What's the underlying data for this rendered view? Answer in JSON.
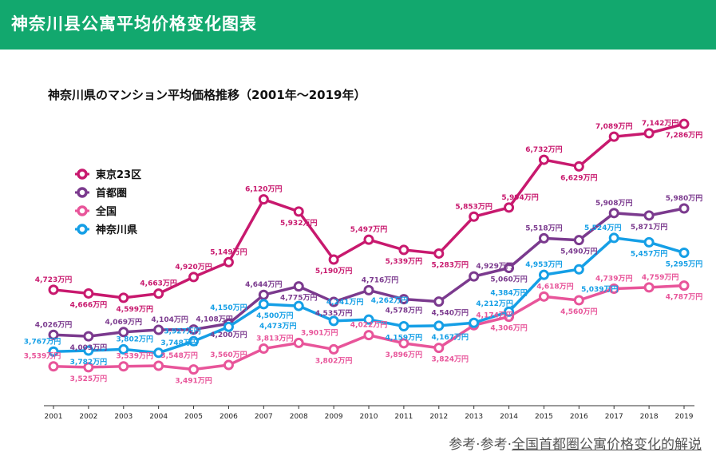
{
  "header": {
    "title": "神奈川县公寓平均价格变化图表"
  },
  "footer": {
    "prefix": "参考·参考·",
    "link": "全国首都圈公寓价格变化的解说"
  },
  "chart_data": {
    "type": "line",
    "title": "神奈川県のマンション平均価格推移（2001年〜2019年）",
    "unit_suffix": "万円",
    "x": [
      "2001",
      "2002",
      "2003",
      "2004",
      "2005",
      "2006",
      "2007",
      "2008",
      "2009",
      "2010",
      "2011",
      "2012",
      "2013",
      "2014",
      "2015",
      "2016",
      "2017",
      "2018",
      "2019"
    ],
    "legend_position": "left",
    "grid": false,
    "series": [
      {
        "name": "東京23区",
        "color": "#c8196e",
        "values": [
          4723,
          4666,
          4599,
          4663,
          4920,
          5149,
          6120,
          5932,
          5190,
          5497,
          5339,
          5283,
          5853,
          5994,
          6732,
          6629,
          7089,
          7142,
          7286
        ]
      },
      {
        "name": "首都圏",
        "color": "#7b3a8e",
        "values": [
          4026,
          4003,
          4069,
          4104,
          4108,
          4200,
          4644,
          4775,
          4535,
          4716,
          4578,
          4540,
          4929,
          5060,
          5518,
          5490,
          5908,
          5871,
          5980
        ]
      },
      {
        "name": "全国",
        "color": "#e8559a",
        "values": [
          3539,
          3525,
          3539,
          3548,
          3491,
          3560,
          3813,
          3901,
          3802,
          4022,
          3896,
          3824,
          4174,
          4306,
          4618,
          4560,
          4739,
          4759,
          4787
        ]
      },
      {
        "name": "神奈川県",
        "color": "#159fe6",
        "values": [
          3767,
          3782,
          3802,
          3748,
          3927,
          4150,
          4500,
          4473,
          4241,
          4262,
          4159,
          4167,
          4212,
          4384,
          4953,
          5039,
          5524,
          5457,
          5295
        ]
      }
    ]
  }
}
